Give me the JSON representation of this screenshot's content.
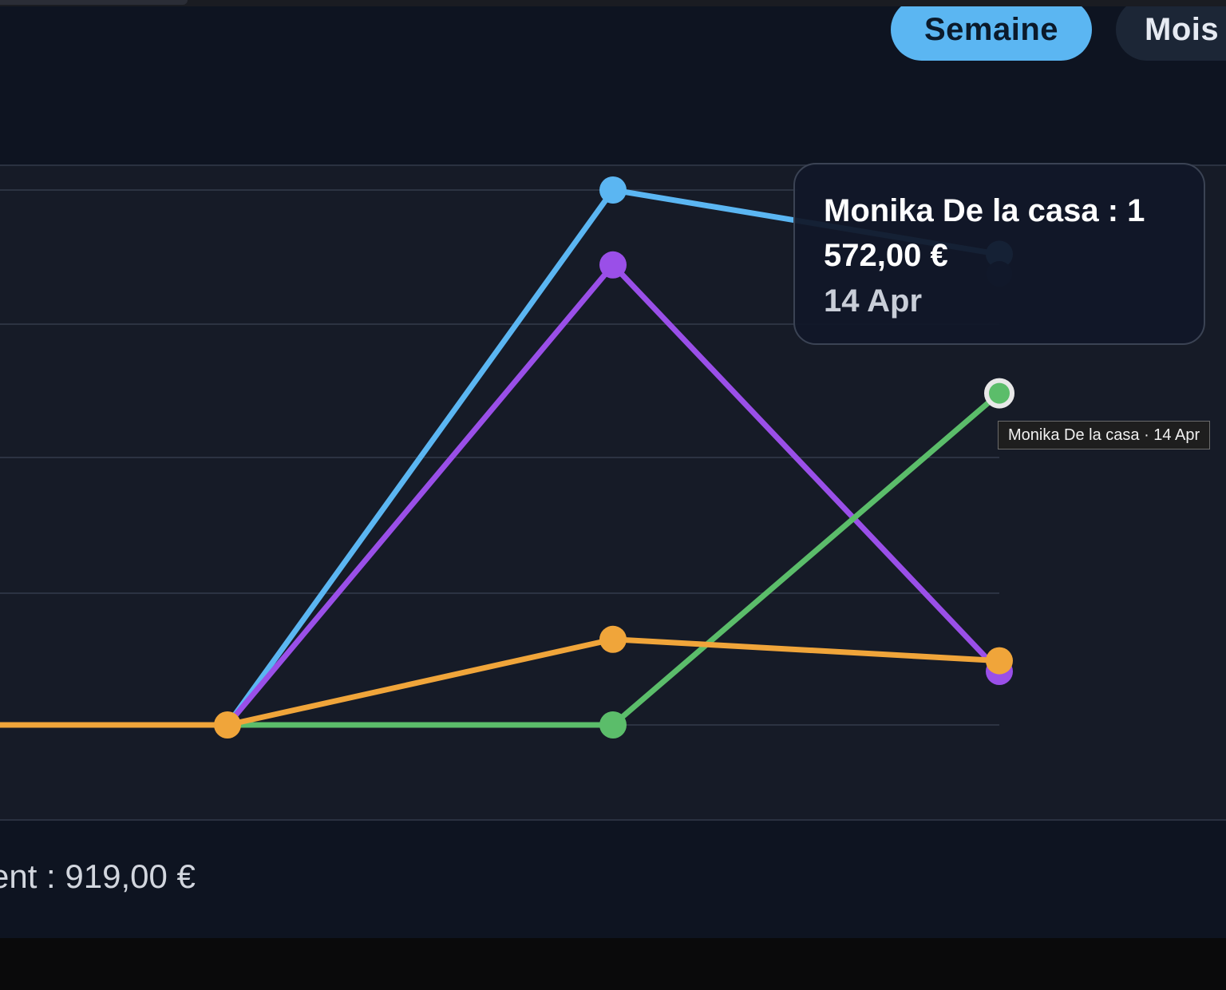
{
  "tabs": {
    "week_label": "Semaine",
    "month_label": "Mois"
  },
  "chart_data": {
    "type": "line",
    "x": [
      "",
      "",
      "",
      "14 Apr"
    ],
    "grid": true,
    "legend": "none",
    "series": [
      {
        "color": "#5bb6f2",
        "values": [
          0,
          0,
          5,
          4.4
        ]
      },
      {
        "color": "#9a4fe8",
        "values": [
          0,
          0,
          4.3,
          0.5
        ]
      },
      {
        "color": "#f0a53a",
        "values": [
          0,
          0,
          0.8,
          0.6
        ]
      },
      {
        "name": "Monika De la casa",
        "color": "#5bbd6a",
        "values": [
          0,
          0,
          0,
          3.1
        ]
      }
    ]
  },
  "tooltip": {
    "label": "Monika De la casa : 1 572,00 €",
    "date": "14 Apr"
  },
  "hover_title": "Monika De la casa · 14 Apr",
  "footer": {
    "total_text": "ent : 919,00 €"
  }
}
